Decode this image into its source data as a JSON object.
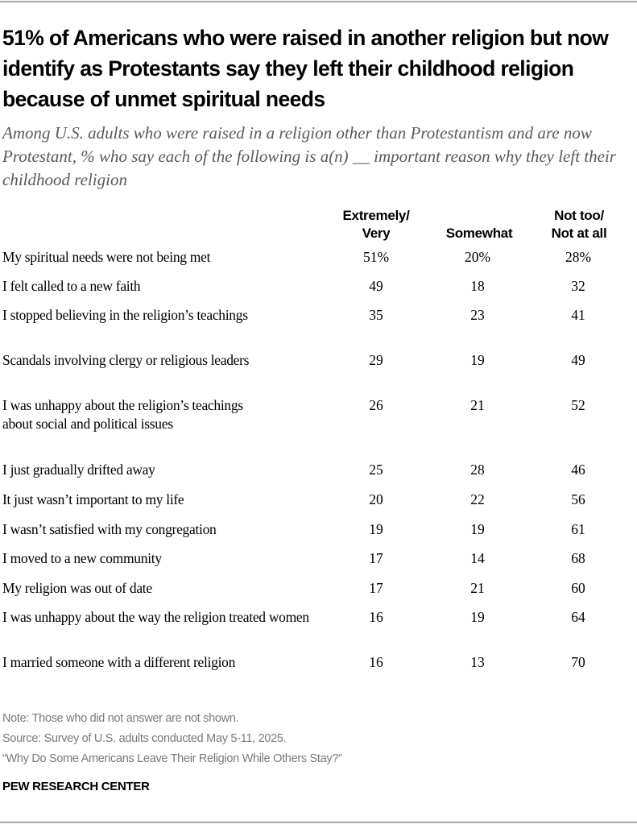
{
  "title": "51% of Americans who were raised in another religion but now identify as Protestants say they left their childhood religion because of unmet spiritual needs",
  "subtitle": "Among U.S. adults who were raised in a religion other than Protestantism and are now Protestant, % who say each of the following is a(n) __ important reason why they left their childhood religion",
  "columns": [
    "Extremely/ Very",
    "Somewhat",
    "Not too/ Not at all"
  ],
  "rows": [
    {
      "label": "My spiritual needs were not being met",
      "values": [
        "51%",
        "20%",
        "28%"
      ]
    },
    {
      "label": "I felt called to a new faith",
      "values": [
        "49",
        "18",
        "32"
      ]
    },
    {
      "label": "I stopped believing in the religion’s teachings",
      "values": [
        "35",
        "23",
        "41"
      ]
    },
    {
      "label": "Scandals involving clergy or religious leaders",
      "values": [
        "29",
        "19",
        "49"
      ]
    },
    {
      "label": "I was unhappy about the religion’s teachings about social and political issues",
      "values": [
        "26",
        "21",
        "52"
      ]
    },
    {
      "label": "I just gradually drifted away",
      "values": [
        "25",
        "28",
        "46"
      ]
    },
    {
      "label": "It just wasn’t important to my life",
      "values": [
        "20",
        "22",
        "56"
      ]
    },
    {
      "label": "I wasn’t satisfied with my congregation",
      "values": [
        "19",
        "19",
        "61"
      ]
    },
    {
      "label": "I moved to a new community",
      "values": [
        "17",
        "14",
        "68"
      ]
    },
    {
      "label": "My religion was out of date",
      "values": [
        "17",
        "21",
        "60"
      ]
    },
    {
      "label": "I was unhappy about the way the religion treated women",
      "values": [
        "16",
        "19",
        "64"
      ]
    },
    {
      "label": "I married someone with a different religion",
      "values": [
        "16",
        "13",
        "70"
      ]
    }
  ],
  "notes": {
    "note": "Note: Those who did not answer are not shown.",
    "source": "Source: Survey of U.S. adults conducted May 5-11, 2025.",
    "report": "“Why Do Some Americans Leave Their Religion While Others Stay?”"
  },
  "brand": "PEW RESEARCH CENTER",
  "colors": {
    "text": "#000000",
    "subtitle": "#5a5a5a",
    "notes": "#7a7a7a",
    "rule": "#a6a6a6"
  },
  "chart_data": {
    "type": "table",
    "title": "51% of Americans who were raised in another religion but now identify as Protestants say they left their childhood religion because of unmet spiritual needs",
    "subtitle": "Among U.S. adults who were raised in a religion other than Protestantism and are now Protestant, % who say each of the following is a(n) __ important reason why they left their childhood religion",
    "categories": [
      "My spiritual needs were not being met",
      "I felt called to a new faith",
      "I stopped believing in the religion’s teachings",
      "Scandals involving clergy or religious leaders",
      "I was unhappy about the religion’s teachings about social and political issues",
      "I just gradually drifted away",
      "It just wasn’t important to my life",
      "I wasn’t satisfied with my congregation",
      "I moved to a new community",
      "My religion was out of date",
      "I was unhappy about the way the religion treated women",
      "I married someone with a different religion"
    ],
    "series": [
      {
        "name": "Extremely/Very",
        "values": [
          51,
          49,
          35,
          29,
          26,
          25,
          20,
          19,
          17,
          17,
          16,
          16
        ]
      },
      {
        "name": "Somewhat",
        "values": [
          20,
          18,
          23,
          19,
          21,
          28,
          22,
          19,
          14,
          21,
          19,
          13
        ]
      },
      {
        "name": "Not too/Not at all",
        "values": [
          28,
          32,
          41,
          49,
          52,
          46,
          56,
          61,
          68,
          60,
          64,
          70
        ]
      }
    ],
    "unit": "%"
  }
}
